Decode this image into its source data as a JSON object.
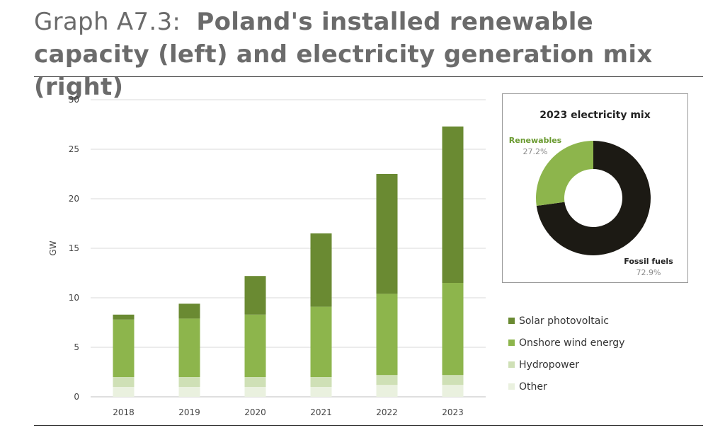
{
  "header": {
    "prefix": "Graph A7.3:",
    "title": "Poland's installed renewable capacity (left) and electricity generation mix (right)"
  },
  "colors": {
    "solar": "#6a8a32",
    "wind": "#8db54c",
    "hydro": "#cfe0b6",
    "other": "#eaf1df",
    "renewables": "#8db54c",
    "fossil": "#1c1a14",
    "renewables_label": "#6a9a30"
  },
  "chart_data": [
    {
      "type": "bar",
      "stacked": true,
      "ylabel": "GW",
      "ylim": [
        0,
        30
      ],
      "yticks": [
        0,
        5,
        10,
        15,
        20,
        25,
        30
      ],
      "grid": true,
      "legend_position": "right",
      "categories": [
        "2018",
        "2019",
        "2020",
        "2021",
        "2022",
        "2023"
      ],
      "series": [
        {
          "name": "Other",
          "key": "other",
          "values": [
            1.0,
            1.0,
            1.0,
            1.0,
            1.2,
            1.2
          ]
        },
        {
          "name": "Hydropower",
          "key": "hydro",
          "values": [
            1.0,
            1.0,
            1.0,
            1.0,
            1.0,
            1.0
          ]
        },
        {
          "name": "Onshore wind energy",
          "key": "wind",
          "values": [
            5.8,
            5.9,
            6.3,
            7.1,
            8.2,
            9.3
          ]
        },
        {
          "name": "Solar photovoltaic",
          "key": "solar",
          "values": [
            0.5,
            1.5,
            3.9,
            7.4,
            12.1,
            15.8
          ]
        }
      ]
    },
    {
      "type": "pie",
      "donut": true,
      "title": "2023 electricity mix",
      "slices": [
        {
          "name": "Fossil fuels",
          "key": "fossil",
          "value": 72.9,
          "label": "72.9%"
        },
        {
          "name": "Renewables",
          "key": "renewables",
          "value": 27.2,
          "label": "27.2%"
        }
      ]
    }
  ]
}
